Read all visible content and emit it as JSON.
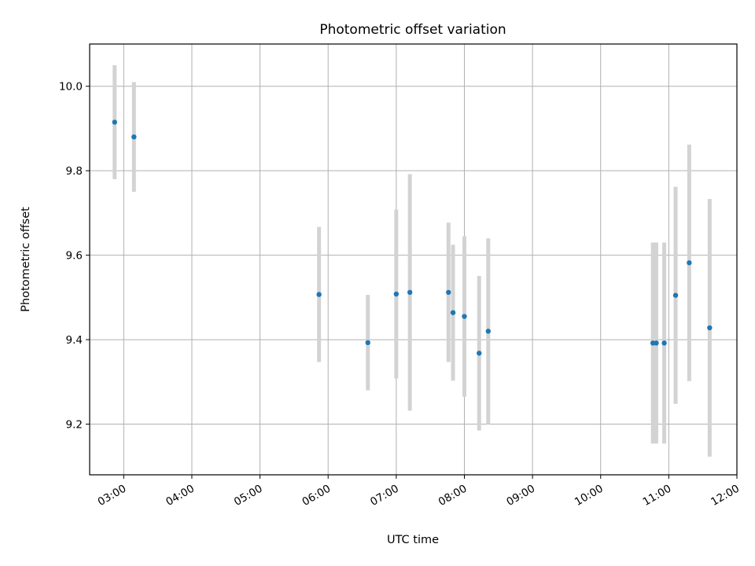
{
  "chart_data": {
    "type": "scatter",
    "title": "Photometric offset variation",
    "xlabel": "UTC time",
    "ylabel": "Photometric offset",
    "x_tick_labels": [
      "03:00",
      "04:00",
      "05:00",
      "06:00",
      "07:00",
      "08:00",
      "09:00",
      "10:00",
      "11:00",
      "12:00"
    ],
    "x_ticks_hours": [
      3,
      4,
      5,
      6,
      7,
      8,
      9,
      10,
      11,
      12
    ],
    "y_ticks": [
      9.2,
      9.4,
      9.6,
      9.8,
      10.0
    ],
    "y_tick_labels": [
      "9.2",
      "9.4",
      "9.6",
      "9.8",
      "10.0"
    ],
    "xlim": [
      "02:30",
      "12:00"
    ],
    "ylim": [
      9.08,
      10.1
    ],
    "grid": true,
    "marker_color": "#1f77b4",
    "errorbar_color": "#d3d3d3",
    "points": [
      {
        "time": "02:52",
        "y": 9.915,
        "err": 0.135
      },
      {
        "time": "03:09",
        "y": 9.88,
        "err": 0.13
      },
      {
        "time": "05:52",
        "y": 9.507,
        "err": 0.16
      },
      {
        "time": "06:35",
        "y": 9.393,
        "err": 0.113
      },
      {
        "time": "07:00",
        "y": 9.508,
        "err": 0.2
      },
      {
        "time": "07:12",
        "y": 9.512,
        "err": 0.28
      },
      {
        "time": "07:46",
        "y": 9.512,
        "err": 0.165
      },
      {
        "time": "07:50",
        "y": 9.464,
        "err": 0.161
      },
      {
        "time": "08:00",
        "y": 9.455,
        "err": 0.19
      },
      {
        "time": "08:13",
        "y": 9.368,
        "err": 0.183
      },
      {
        "time": "08:21",
        "y": 9.42,
        "err": 0.22
      },
      {
        "time": "10:46",
        "y": 9.392,
        "err": 0.238
      },
      {
        "time": "10:49",
        "y": 9.392,
        "err": 0.238
      },
      {
        "time": "10:56",
        "y": 9.392,
        "err": 0.238
      },
      {
        "time": "11:06",
        "y": 9.505,
        "err": 0.257
      },
      {
        "time": "11:18",
        "y": 9.582,
        "err": 0.28
      },
      {
        "time": "11:36",
        "y": 9.428,
        "err": 0.305
      }
    ]
  }
}
